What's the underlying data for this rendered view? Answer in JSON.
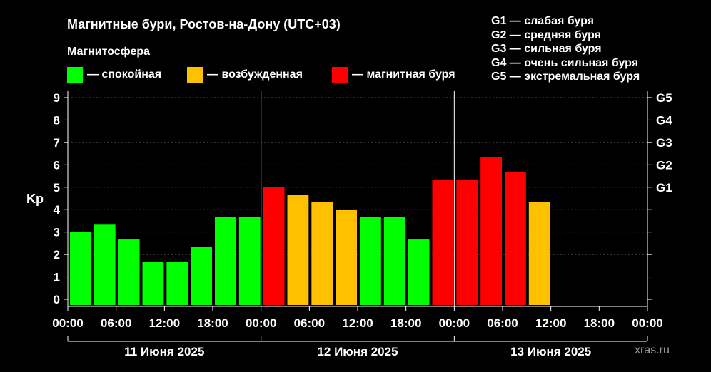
{
  "header": {
    "title": "Магнитные бури, Ростов-на-Дону (UTC+03)",
    "legend_title": "Магнитосфера"
  },
  "legend": [
    {
      "label": "— спокойная",
      "color": "#00ff00"
    },
    {
      "label": "— возбужденная",
      "color": "#ffc000"
    },
    {
      "label": "— магнитная буря",
      "color": "#ff0000"
    }
  ],
  "g_scale": [
    {
      "label": "G1 — слабая буря"
    },
    {
      "label": "G2 — средняя буря"
    },
    {
      "label": "G3 — сильная буря"
    },
    {
      "label": "G4 — очень сильная буря"
    },
    {
      "label": "G5 — экстремальная буря"
    }
  ],
  "watermark": "xras.ru",
  "chart_data": {
    "type": "bar",
    "ylabel": "Kp",
    "ylim": [
      0,
      9
    ],
    "yticks": [
      "0",
      "1",
      "2",
      "3",
      "4",
      "5",
      "6",
      "7",
      "8",
      "9"
    ],
    "right_ticks": [
      {
        "label": "G1",
        "value": 5
      },
      {
        "label": "G2",
        "value": 6
      },
      {
        "label": "G3",
        "value": 7
      },
      {
        "label": "G4",
        "value": 8
      },
      {
        "label": "G5",
        "value": 9
      }
    ],
    "grid": "horizontal dashed",
    "xticks": [
      "00:00",
      "06:00",
      "12:00",
      "18:00",
      "00:00",
      "06:00",
      "12:00",
      "18:00",
      "00:00",
      "06:00",
      "12:00",
      "18:00",
      "00:00"
    ],
    "days": [
      "11 Июня 2025",
      "12 Июня 2025",
      "13 Июня 2025"
    ],
    "bar_slots": 24,
    "values": [
      3.0,
      3.33,
      2.67,
      1.67,
      1.67,
      2.33,
      3.67,
      3.67,
      5.0,
      4.67,
      4.33,
      4.0,
      3.67,
      3.67,
      2.67,
      5.33,
      5.33,
      6.33,
      5.67,
      4.33
    ],
    "levels": [
      "quiet",
      "quiet",
      "quiet",
      "quiet",
      "quiet",
      "quiet",
      "quiet",
      "quiet",
      "storm",
      "active",
      "active",
      "active",
      "quiet",
      "quiet",
      "quiet",
      "storm",
      "storm",
      "storm",
      "storm",
      "active"
    ],
    "level_colors": {
      "quiet": "#00ff00",
      "active": "#ffc000",
      "storm": "#ff0000"
    }
  }
}
